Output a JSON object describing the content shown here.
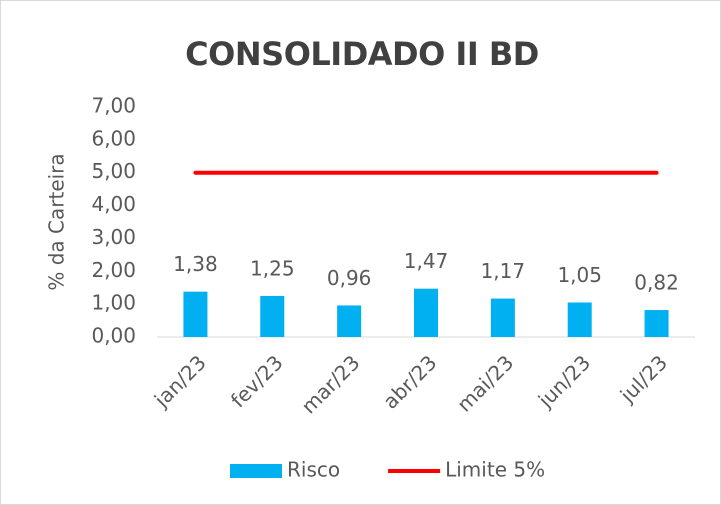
{
  "chart_data": {
    "type": "bar",
    "title": "CONSOLIDADO II BD",
    "y_label": "% da Carteira",
    "categories": [
      "jan/23",
      "fev/23",
      "mar/23",
      "abr/23",
      "mai/23",
      "jun/23",
      "jul/23"
    ],
    "series": [
      {
        "name": "Risco",
        "type": "bar",
        "color": "#00b0f0",
        "values": [
          1.38,
          1.25,
          0.96,
          1.47,
          1.17,
          1.05,
          0.82
        ],
        "value_labels": [
          "1,38",
          "1,25",
          "0,96",
          "1,47",
          "1,17",
          "1,05",
          "0,82"
        ]
      },
      {
        "name": "Limite 5%",
        "type": "line",
        "color": "#ff0000",
        "values": [
          5,
          5,
          5,
          5,
          5,
          5,
          5
        ]
      }
    ],
    "ylim": [
      0,
      7
    ],
    "yticks": [
      {
        "value": 0,
        "label": "0,00"
      },
      {
        "value": 1,
        "label": "1,00"
      },
      {
        "value": 2,
        "label": "2,00"
      },
      {
        "value": 3,
        "label": "3,00"
      },
      {
        "value": 4,
        "label": "4,00"
      },
      {
        "value": 5,
        "label": "5,00"
      },
      {
        "value": 6,
        "label": "6,00"
      },
      {
        "value": 7,
        "label": "7,00"
      }
    ],
    "grid": false,
    "legend": "bottom"
  }
}
